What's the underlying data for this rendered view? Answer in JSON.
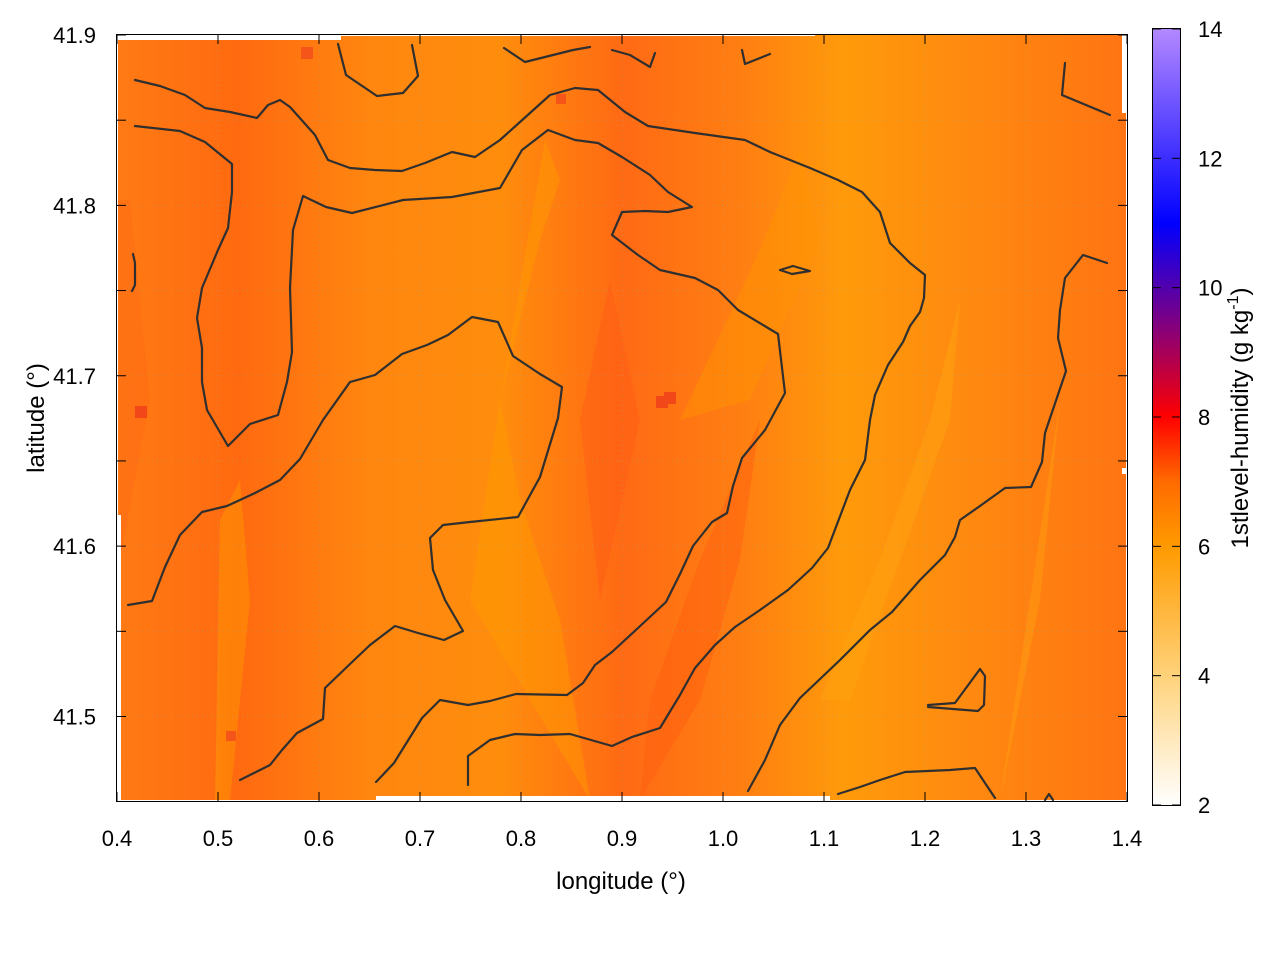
{
  "chart_data": {
    "type": "heatmap",
    "xlabel": "longitude (°)",
    "ylabel": "latitude (°)",
    "colorbar_label": "1stlevel-humidity (g kg",
    "colorbar_label_sup": "-1",
    "colorbar_label_end": ")",
    "xlim": [
      0.4,
      1.4
    ],
    "ylim": [
      41.45,
      41.9
    ],
    "xticks": [
      "0.4",
      "0.5",
      "0.6",
      "0.7",
      "0.8",
      "0.9",
      "1.0",
      "1.1",
      "1.2",
      "1.3",
      "1.4"
    ],
    "yticks": [
      "41.5",
      "41.6",
      "41.7",
      "41.8",
      "41.9"
    ],
    "colorbar_range": [
      2,
      14
    ],
    "colorbar_ticks": [
      "2",
      "4",
      "6",
      "8",
      "10",
      "12",
      "14"
    ],
    "colormap": [
      "#ffffff",
      "#ffd27a",
      "#ff9a00",
      "#ff6a00",
      "#ff0000",
      "#800080",
      "#0000ff",
      "#b388ff"
    ],
    "grid": true,
    "field_typical_value": 6.2,
    "field_range": [
      5.0,
      7.5
    ],
    "colors": {
      "field_low": "#ff9a0a",
      "field_mid": "#ff7a12",
      "field_high": "#ff5a12",
      "contour": "#2f2f2f"
    }
  }
}
